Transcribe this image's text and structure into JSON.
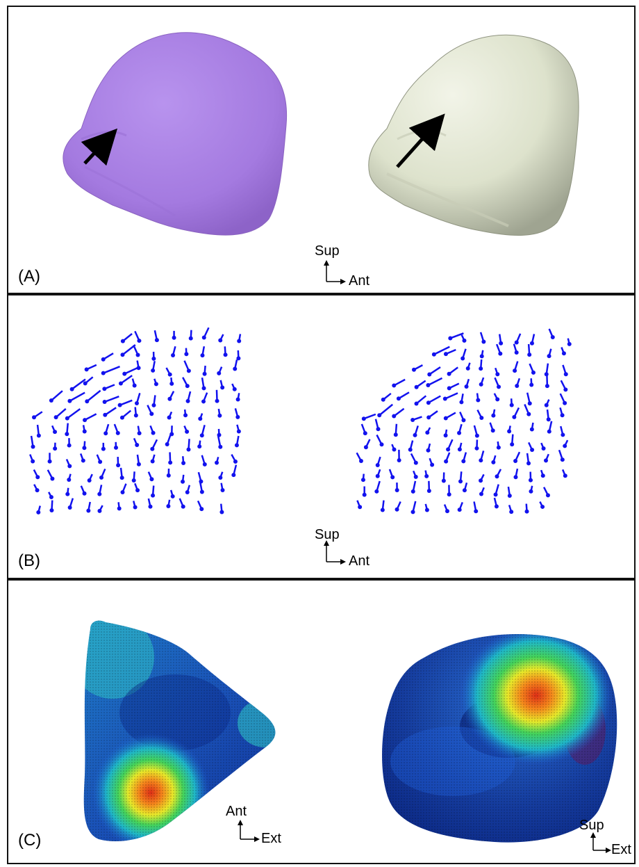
{
  "panels": {
    "a": {
      "label": "(A)",
      "axes": {
        "up": "Sup",
        "right": "Ant"
      },
      "left_model_color": "#a97fe4",
      "right_model_color": "#e6ead8"
    },
    "b": {
      "label": "(B)",
      "axes": {
        "up": "Sup",
        "right": "Ant"
      },
      "vector_color": "#1212ee"
    },
    "c": {
      "label": "(C)",
      "left_axes": {
        "up": "Ant",
        "right": "Ext"
      },
      "right_axes": {
        "up": "Sup",
        "right": "Ext"
      },
      "colormap": [
        "#08208a",
        "#1f5ed4",
        "#1fb7c9",
        "#45d35a",
        "#e8e92a",
        "#f5871c",
        "#de2f17"
      ]
    }
  }
}
